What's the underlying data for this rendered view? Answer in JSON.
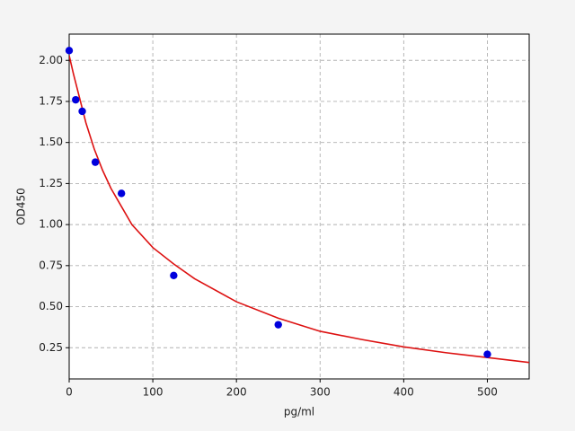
{
  "chart_data": {
    "type": "scatter",
    "xlabel": "pg/ml",
    "ylabel": "OD450",
    "xlim": [
      0,
      550
    ],
    "ylim": [
      0.06,
      2.16
    ],
    "xticks": [
      0,
      100,
      200,
      300,
      400,
      500
    ],
    "yticks": [
      {
        "value": 0.25,
        "label": "0.25"
      },
      {
        "value": 0.5,
        "label": "0.50"
      },
      {
        "value": 0.75,
        "label": "0.75"
      },
      {
        "value": 1.0,
        "label": "1.00"
      },
      {
        "value": 1.25,
        "label": "1.25"
      },
      {
        "value": 1.5,
        "label": "1.50"
      },
      {
        "value": 1.75,
        "label": "1.75"
      },
      {
        "value": 2.0,
        "label": "2.00"
      }
    ],
    "grid": true,
    "series": [
      {
        "mode": "markers",
        "color": "#0000dd",
        "x": [
          0,
          7.8,
          15.6,
          31.25,
          62.5,
          125,
          250,
          500
        ],
        "values": [
          2.06,
          1.76,
          1.69,
          1.38,
          1.19,
          0.69,
          0.39,
          0.21
        ]
      },
      {
        "mode": "line",
        "color": "#dd1111",
        "x": [
          0,
          5,
          10,
          20,
          30,
          40,
          50,
          75,
          100,
          125,
          150,
          200,
          250,
          300,
          350,
          400,
          450,
          500,
          550
        ],
        "values": [
          2.03,
          1.92,
          1.82,
          1.62,
          1.46,
          1.33,
          1.22,
          1.0,
          0.86,
          0.76,
          0.67,
          0.53,
          0.43,
          0.35,
          0.3,
          0.255,
          0.22,
          0.19,
          0.16
        ]
      }
    ]
  }
}
